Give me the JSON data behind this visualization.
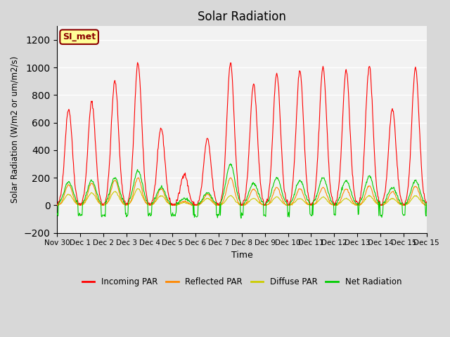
{
  "title": "Solar Radiation",
  "xlabel": "Time",
  "ylabel": "Solar Radiation (W/m2 or um/m2/s)",
  "ylim": [
    -200,
    1300
  ],
  "yticks": [
    -200,
    0,
    200,
    400,
    600,
    800,
    1000,
    1200
  ],
  "x_labels": [
    "Nov 30",
    "Dec 1",
    "Dec 2",
    "Dec 3",
    "Dec 4",
    "Dec 5",
    "Dec 6",
    "Dec 7",
    "Dec 8",
    "Dec 9",
    "Dec 10",
    "Dec 11",
    "Dec 12",
    "Dec 13",
    "Dec 14",
    "Dec 15"
  ],
  "colors": {
    "incoming": "#FF0000",
    "reflected": "#FF8800",
    "diffuse": "#CCCC00",
    "net": "#00CC00"
  },
  "legend_labels": [
    "Incoming PAR",
    "Reflected PAR",
    "Diffuse PAR",
    "Net Radiation"
  ],
  "annotation_text": "SI_met",
  "annotation_color": "#8B0000",
  "annotation_bg": "#FFFF99",
  "n_days": 16,
  "n_points_per_day": 48,
  "day_peaks_incoming": [
    700,
    750,
    900,
    1030,
    560,
    230,
    480,
    1030,
    880,
    960,
    980,
    1000,
    980,
    1010,
    700,
    1000
  ],
  "day_peaks_reflected": [
    150,
    160,
    180,
    200,
    120,
    30,
    80,
    200,
    120,
    130,
    120,
    130,
    120,
    140,
    100,
    140
  ],
  "day_peaks_diffuse": [
    80,
    90,
    100,
    120,
    70,
    20,
    50,
    70,
    50,
    60,
    50,
    60,
    50,
    70,
    50,
    70
  ],
  "night_net": -70,
  "day_net_peaks": [
    170,
    180,
    200,
    250,
    130,
    50,
    90,
    300,
    160,
    200,
    180,
    200,
    180,
    210,
    130,
    180
  ]
}
